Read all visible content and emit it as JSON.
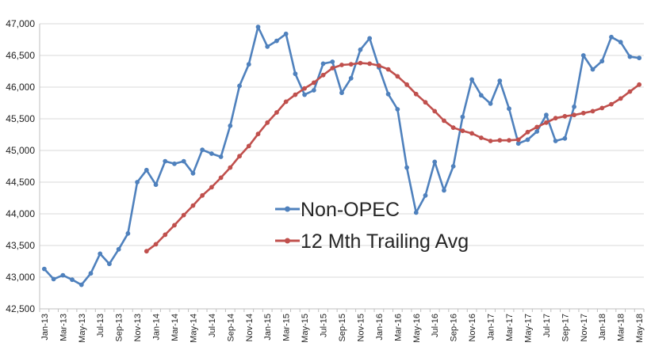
{
  "chart_data": {
    "type": "line",
    "title": "",
    "xlabel": "",
    "ylabel": "",
    "ylim": [
      42500,
      47000
    ],
    "ytick_values": [
      42500,
      43000,
      43500,
      44000,
      44500,
      45000,
      45500,
      46000,
      46500,
      47000
    ],
    "ytick_labels": [
      "42,500",
      "43,000",
      "43,500",
      "44,000",
      "44,500",
      "45,000",
      "45,500",
      "46,000",
      "46,500",
      "47,000"
    ],
    "grid": "horizontal",
    "legend_position": "center",
    "x": [
      "Jan-13",
      "Feb-13",
      "Mar-13",
      "Apr-13",
      "May-13",
      "Jun-13",
      "Jul-13",
      "Aug-13",
      "Sep-13",
      "Oct-13",
      "Nov-13",
      "Dec-13",
      "Jan-14",
      "Feb-14",
      "Mar-14",
      "Apr-14",
      "May-14",
      "Jun-14",
      "Jul-14",
      "Aug-14",
      "Sep-14",
      "Oct-14",
      "Nov-14",
      "Dec-14",
      "Jan-15",
      "Feb-15",
      "Mar-15",
      "Apr-15",
      "May-15",
      "Jun-15",
      "Jul-15",
      "Aug-15",
      "Sep-15",
      "Oct-15",
      "Nov-15",
      "Dec-15",
      "Jan-16",
      "Feb-16",
      "Mar-16",
      "Apr-16",
      "May-16",
      "Jun-16",
      "Jul-16",
      "Aug-16",
      "Sep-16",
      "Oct-16",
      "Nov-16",
      "Dec-16",
      "Jan-17",
      "Feb-17",
      "Mar-17",
      "Apr-17",
      "May-17",
      "Jun-17",
      "Jul-17",
      "Aug-17",
      "Sep-17",
      "Oct-17",
      "Nov-17",
      "Dec-17",
      "Jan-18",
      "Feb-18",
      "Mar-18",
      "Apr-18",
      "May-18"
    ],
    "xtick_labels": [
      "Jan-13",
      "Mar-13",
      "May-13",
      "Jul-13",
      "Sep-13",
      "Nov-13",
      "Jan-14",
      "Mar-14",
      "May-14",
      "Jul-14",
      "Sep-14",
      "Nov-14",
      "Jan-15",
      "Mar-15",
      "May-15",
      "Jul-15",
      "Sep-15",
      "Nov-15",
      "Jan-16",
      "Mar-16",
      "May-16",
      "Jul-16",
      "Sep-16",
      "Nov-16",
      "Jan-17",
      "Mar-17",
      "May-17",
      "Jul-17",
      "Sep-17",
      "Nov-17",
      "Jan-18",
      "Mar-18",
      "May-18"
    ],
    "series": [
      {
        "name": "Non-OPEC",
        "color": "#4F81BD",
        "values": [
          43130,
          42970,
          43030,
          42960,
          42880,
          43060,
          43370,
          43210,
          43440,
          43690,
          44500,
          44690,
          44460,
          44830,
          44790,
          44830,
          44640,
          45010,
          44950,
          44900,
          45390,
          46020,
          46360,
          46950,
          46640,
          46730,
          46840,
          46210,
          45880,
          45950,
          46370,
          46400,
          45910,
          46140,
          46590,
          46770,
          46310,
          45890,
          45650,
          44730,
          44020,
          44290,
          44820,
          44370,
          44750,
          45530,
          46120,
          45870,
          45740,
          46100,
          45660,
          45110,
          45170,
          45300,
          45560,
          45150,
          45190,
          45690,
          46500,
          46280,
          46410,
          46790,
          46710,
          46480,
          46460
        ]
      },
      {
        "name": "12 Mth Trailing Avg",
        "color": "#C0504D",
        "values": [
          null,
          null,
          null,
          null,
          null,
          null,
          null,
          null,
          null,
          null,
          null,
          43410,
          43520,
          43670,
          43820,
          43980,
          44130,
          44290,
          44420,
          44570,
          44730,
          44910,
          45070,
          45260,
          45440,
          45600,
          45770,
          45880,
          45980,
          46070,
          46190,
          46300,
          46350,
          46360,
          46380,
          46370,
          46340,
          46280,
          46170,
          46040,
          45890,
          45760,
          45620,
          45470,
          45360,
          45310,
          45270,
          45200,
          45150,
          45160,
          45160,
          45170,
          45290,
          45370,
          45440,
          45510,
          45540,
          45560,
          45590,
          45620,
          45670,
          45730,
          45820,
          45930,
          46040
        ]
      }
    ]
  }
}
